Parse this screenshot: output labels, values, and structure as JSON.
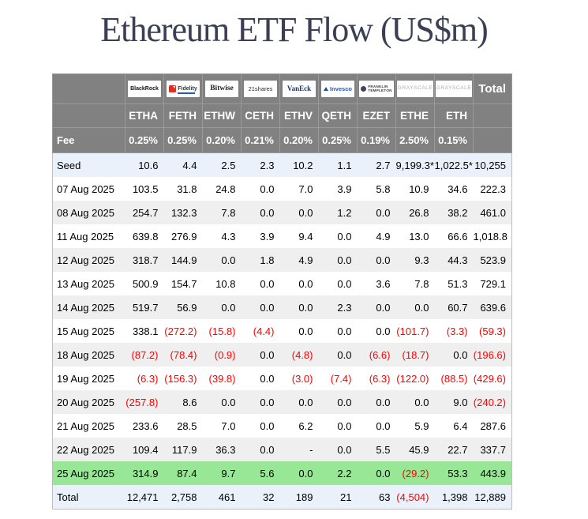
{
  "title": "Ethereum ETF Flow (US$m)",
  "chart_data": {
    "type": "table",
    "title": "Ethereum ETF Flow (US$m)",
    "issuers": [
      {
        "key": "blackrock",
        "name": "BlackRock"
      },
      {
        "key": "fidelity",
        "name": "Fidelity"
      },
      {
        "key": "bitwise",
        "name": "Bitwise"
      },
      {
        "key": "shares21",
        "name": "21shares"
      },
      {
        "key": "vaneck",
        "name": "VanEck"
      },
      {
        "key": "invesco",
        "name": "Invesco"
      },
      {
        "key": "franklin",
        "name": "FRANKLIN TEMPLETON"
      },
      {
        "key": "grayscale",
        "name": "GRAYSCALE"
      },
      {
        "key": "grayscale",
        "name": "GRAYSCALE"
      }
    ],
    "total_label": "Total",
    "tickers": [
      "ETHA",
      "FETH",
      "ETHW",
      "CETH",
      "ETHV",
      "QETH",
      "EZET",
      "ETHE",
      "ETH"
    ],
    "fee_label": "Fee",
    "fees": [
      "0.25%",
      "0.25%",
      "0.20%",
      "0.21%",
      "0.20%",
      "0.25%",
      "0.19%",
      "2.50%",
      "0.15%"
    ],
    "rows": [
      {
        "label": "Seed",
        "variant": "seed",
        "values": [
          "10.6",
          "4.4",
          "2.5",
          "2.3",
          "10.2",
          "1.1",
          "2.7",
          "9,199.3*",
          "1,022.5*"
        ],
        "total": "10,255"
      },
      {
        "label": "07 Aug 2025",
        "variant": "plain",
        "values": [
          "103.5",
          "31.8",
          "24.8",
          "0.0",
          "7.0",
          "3.9",
          "5.8",
          "10.9",
          "34.6"
        ],
        "total": "222.3"
      },
      {
        "label": "08 Aug 2025",
        "variant": "alt",
        "values": [
          "254.7",
          "132.3",
          "7.8",
          "0.0",
          "0.0",
          "1.2",
          "0.0",
          "26.8",
          "38.2"
        ],
        "total": "461.0"
      },
      {
        "label": "11 Aug 2025",
        "variant": "plain",
        "values": [
          "639.8",
          "276.9",
          "4.3",
          "3.9",
          "9.4",
          "0.0",
          "4.9",
          "13.0",
          "66.6"
        ],
        "total": "1,018.8"
      },
      {
        "label": "12 Aug 2025",
        "variant": "alt",
        "values": [
          "318.7",
          "144.9",
          "0.0",
          "1.8",
          "4.9",
          "0.0",
          "0.0",
          "9.3",
          "44.3"
        ],
        "total": "523.9"
      },
      {
        "label": "13 Aug 2025",
        "variant": "plain",
        "values": [
          "500.9",
          "154.7",
          "10.8",
          "0.0",
          "0.0",
          "0.0",
          "3.6",
          "7.8",
          "51.3"
        ],
        "total": "729.1"
      },
      {
        "label": "14 Aug 2025",
        "variant": "alt",
        "values": [
          "519.7",
          "56.9",
          "0.0",
          "0.0",
          "0.0",
          "2.3",
          "0.0",
          "0.0",
          "60.7"
        ],
        "total": "639.6"
      },
      {
        "label": "15 Aug 2025",
        "variant": "plain",
        "values": [
          "338.1",
          "(272.2)",
          "(15.8)",
          "(4.4)",
          "0.0",
          "0.0",
          "0.0",
          "(101.7)",
          "(3.3)"
        ],
        "total": "(59.3)"
      },
      {
        "label": "18 Aug 2025",
        "variant": "alt",
        "values": [
          "(87.2)",
          "(78.4)",
          "(0.9)",
          "0.0",
          "(4.8)",
          "0.0",
          "(6.6)",
          "(18.7)",
          "0.0"
        ],
        "total": "(196.6)"
      },
      {
        "label": "19 Aug 2025",
        "variant": "plain",
        "values": [
          "(6.3)",
          "(156.3)",
          "(39.8)",
          "0.0",
          "(3.0)",
          "(7.4)",
          "(6.3)",
          "(122.0)",
          "(88.5)"
        ],
        "total": "(429.6)"
      },
      {
        "label": "20 Aug 2025",
        "variant": "alt",
        "values": [
          "(257.8)",
          "8.6",
          "0.0",
          "0.0",
          "0.0",
          "0.0",
          "0.0",
          "0.0",
          "9.0"
        ],
        "total": "(240.2)"
      },
      {
        "label": "21 Aug 2025",
        "variant": "plain",
        "values": [
          "233.6",
          "28.5",
          "7.0",
          "0.0",
          "6.2",
          "0.0",
          "0.0",
          "5.9",
          "6.4"
        ],
        "total": "287.6"
      },
      {
        "label": "22 Aug 2025",
        "variant": "alt",
        "values": [
          "109.4",
          "117.9",
          "36.3",
          "0.0",
          "-",
          "0.0",
          "5.5",
          "45.9",
          "22.7"
        ],
        "total": "337.7"
      },
      {
        "label": "25 Aug 2025",
        "variant": "highlight",
        "values": [
          "314.9",
          "87.4",
          "9.7",
          "5.6",
          "0.0",
          "2.2",
          "0.0",
          "(29.2)",
          "53.3"
        ],
        "total": "443.9"
      },
      {
        "label": "Total",
        "variant": "total",
        "values": [
          "12,471",
          "2,758",
          "461",
          "32",
          "189",
          "21",
          "63",
          "(4,504)",
          "1,398"
        ],
        "total": "12,889"
      }
    ],
    "colors": {
      "header_bg": "#818181",
      "seed_total_row_bg": "#ebf1fa",
      "alt_row_bg": "#efefef",
      "highlight_row_bg": "#97e797",
      "negative_text": "#ff0000",
      "title_text": "#3a3f55"
    }
  }
}
